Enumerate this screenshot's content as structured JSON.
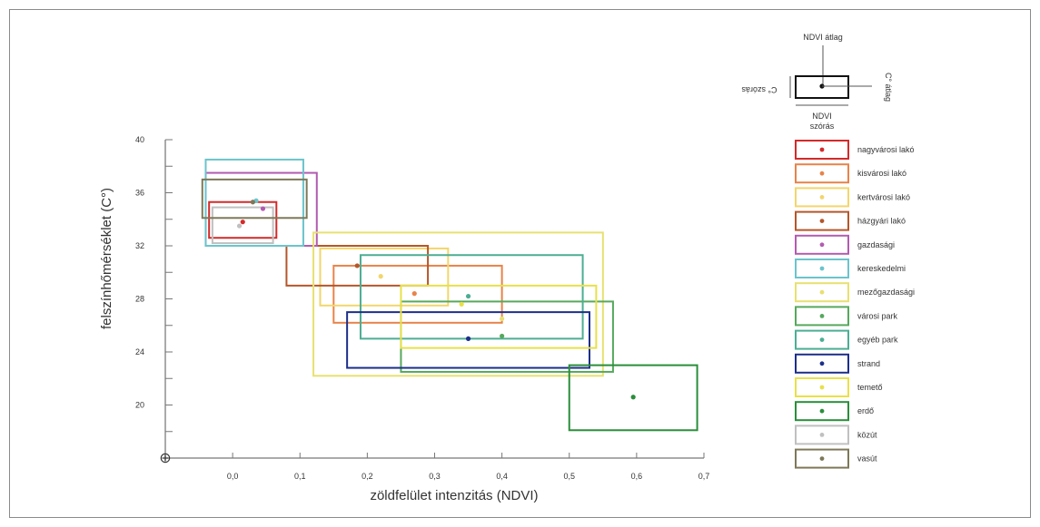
{
  "chart_data": {
    "type": "scatter",
    "title": "",
    "xlabel": "zöldfelület intenzitás (NDVI)",
    "ylabel": "felszínhőmérséklet (C°)",
    "xlim": [
      -0.1,
      0.7
    ],
    "ylim": [
      16,
      40
    ],
    "x_ticks": [
      "0,0",
      "0,1",
      "0,2",
      "0,3",
      "0,4",
      "0,5",
      "0,6",
      "0,7"
    ],
    "y_ticks": [
      "20",
      "24",
      "28",
      "32",
      "36",
      "40"
    ],
    "origin_marker": "⊕",
    "grid": false,
    "legend_position": "right",
    "key": {
      "top_label": "NDVI átlag",
      "left_label": "C° szórás",
      "right_label": "C° átlag",
      "bottom_label_1": "NDVI",
      "bottom_label_2": "szórás"
    },
    "series": [
      {
        "name": "nagyvárosi lakó",
        "color": "#d42a2a",
        "mean": [
          0.015,
          33.8
        ],
        "box": [
          -0.035,
          0.065,
          32.6,
          35.3
        ]
      },
      {
        "name": "kisvárosi lakó",
        "color": "#e8834a",
        "mean": [
          0.27,
          28.4
        ],
        "box": [
          0.15,
          0.4,
          26.2,
          30.5
        ]
      },
      {
        "name": "kertvárosi lakó",
        "color": "#f2d66c",
        "mean": [
          0.22,
          29.7
        ],
        "box": [
          0.13,
          0.32,
          27.5,
          31.8
        ]
      },
      {
        "name": "házgyári lakó",
        "color": "#b5562a",
        "mean": [
          0.185,
          30.5
        ],
        "box": [
          0.08,
          0.29,
          29.0,
          32.0
        ]
      },
      {
        "name": "gazdasági",
        "color": "#b25bb0",
        "mean": [
          0.045,
          34.8
        ],
        "box": [
          -0.04,
          0.125,
          32.0,
          37.5
        ]
      },
      {
        "name": "kereskedelmi",
        "color": "#6bc4cc",
        "mean": [
          0.035,
          35.4
        ],
        "box": [
          -0.04,
          0.105,
          32.0,
          38.5
        ]
      },
      {
        "name": "mezőgazdasági",
        "color": "#e8e070",
        "mean": [
          0.4,
          26.5
        ],
        "box": [
          0.12,
          0.55,
          22.2,
          33.0
        ]
      },
      {
        "name": "városi park",
        "color": "#56a85c",
        "mean": [
          0.4,
          25.2
        ],
        "box": [
          0.25,
          0.565,
          22.5,
          27.8
        ]
      },
      {
        "name": "egyéb park",
        "color": "#4cae92",
        "mean": [
          0.35,
          28.2
        ],
        "box": [
          0.19,
          0.52,
          25.0,
          31.3
        ]
      },
      {
        "name": "strand",
        "color": "#1c2f8a",
        "mean": [
          0.35,
          25.0
        ],
        "box": [
          0.17,
          0.53,
          22.8,
          27.0
        ]
      },
      {
        "name": "temető",
        "color": "#e8e04a",
        "mean": [
          0.34,
          27.6
        ],
        "box": [
          0.25,
          0.54,
          24.3,
          29.0
        ]
      },
      {
        "name": "erdő",
        "color": "#2a8e3a",
        "mean": [
          0.595,
          20.6
        ],
        "box": [
          0.5,
          0.69,
          18.1,
          23.0
        ]
      },
      {
        "name": "közút",
        "color": "#c0c0c0",
        "mean": [
          0.01,
          33.5
        ],
        "box": [
          -0.03,
          0.06,
          32.2,
          34.9
        ]
      },
      {
        "name": "vasút",
        "color": "#7d7858",
        "mean": [
          0.03,
          35.3
        ],
        "box": [
          -0.045,
          0.11,
          34.1,
          37.0
        ]
      }
    ]
  }
}
